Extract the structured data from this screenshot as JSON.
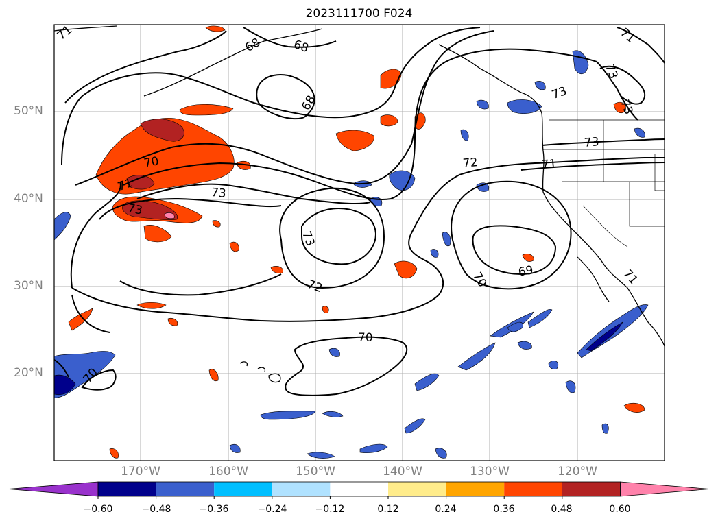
{
  "map": {
    "title": "2023111700 F024",
    "lat_labels": [
      "50°N",
      "40°N",
      "30°N",
      "20°N"
    ],
    "lon_labels": [
      "170°W",
      "160°W",
      "150°W",
      "140°W",
      "130°W",
      "120°W"
    ],
    "contour_labels": [
      "71",
      "68",
      "68",
      "70",
      "71",
      "73",
      "73",
      "72",
      "73",
      "72",
      "70",
      "70",
      "69",
      "71",
      "73",
      "73",
      "73",
      "71",
      "70",
      "73",
      "68",
      "71"
    ],
    "colorbar": {
      "ticks": [
        "−0.60",
        "−0.48",
        "−0.36",
        "−0.24",
        "−0.12",
        "0.12",
        "0.24",
        "0.36",
        "0.48",
        "0.60"
      ],
      "colors": [
        "#9932cc",
        "#00008b",
        "#3a5fcd",
        "#00bfff",
        "#b0e2ff",
        "#ffffff",
        "#ffec8b",
        "#ffa500",
        "#ff4500",
        "#b22222",
        "#ff82ab"
      ]
    }
  }
}
